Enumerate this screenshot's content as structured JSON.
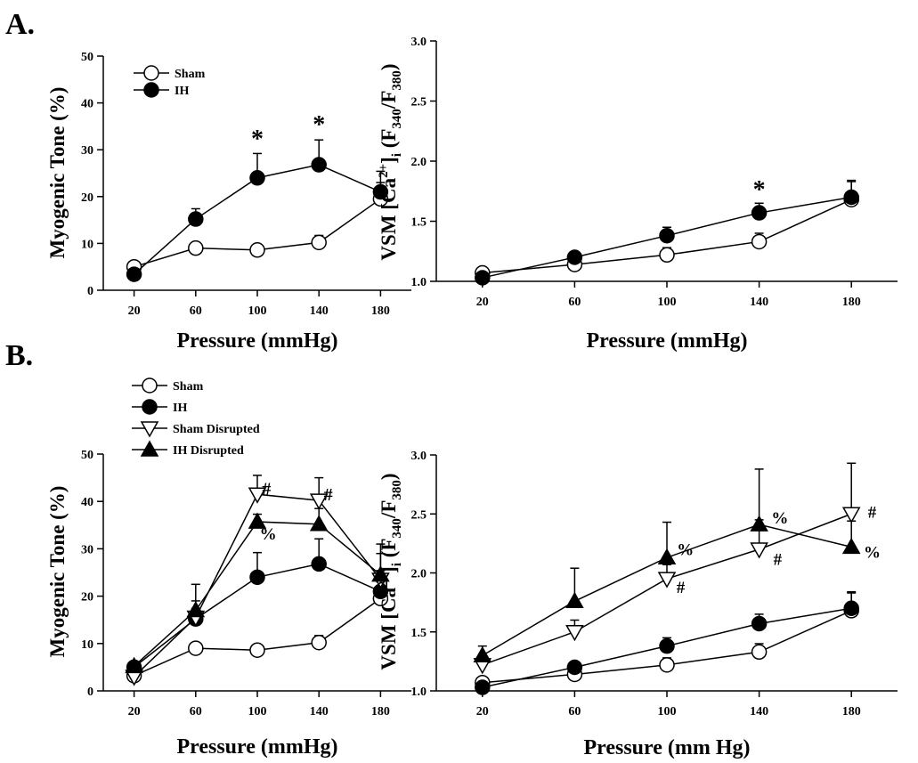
{
  "panels": [
    {
      "label": "A."
    },
    {
      "label": "B."
    }
  ],
  "chart_data": [
    {
      "type": "line",
      "panel": "A.",
      "xlabel": "Pressure (mmHg)",
      "ylabel": "Myogenic Tone (%)",
      "x": [
        20,
        60,
        100,
        140,
        180
      ],
      "xlim": [
        0,
        200
      ],
      "ylim": [
        0,
        50
      ],
      "yticks": [
        0,
        10,
        20,
        30,
        40,
        50
      ],
      "legend_position": "top-left",
      "series": [
        {
          "name": "Sham",
          "marker": "open-circle",
          "y": [
            5,
            9,
            8.6,
            10.2,
            19.5
          ],
          "err": [
            0.6,
            0.8,
            0.8,
            1.5,
            3.5
          ]
        },
        {
          "name": "IH",
          "marker": "filled-circle",
          "y": [
            3.4,
            15.2,
            24,
            26.8,
            21
          ],
          "err": [
            0.8,
            2.2,
            5.2,
            5.3,
            4.4
          ]
        }
      ],
      "annotations": [
        {
          "text": "*",
          "x": 100,
          "y": 32.5,
          "size": 28
        },
        {
          "text": "*",
          "x": 140,
          "y": 35.5,
          "size": 28
        }
      ]
    },
    {
      "type": "line",
      "panel": "A.",
      "xlabel": "Pressure (mmHg)",
      "ylabel": "VSM [Ca2+]i (F340/F380)",
      "ylabel_parts": {
        "pre": "VSM [Ca",
        "sup": "2+",
        "mid1": "]",
        "sub1": "i",
        "mid2": " (F",
        "sub2": "340",
        "mid3": "/F",
        "sub3": "380",
        "end": ")"
      },
      "x": [
        20,
        60,
        100,
        140,
        180
      ],
      "xlim": [
        0,
        200
      ],
      "ylim": [
        1.0,
        3.0
      ],
      "yticks": [
        "1.0",
        "1.5",
        "2.0",
        "2.5",
        "3.0"
      ],
      "series": [
        {
          "name": "Sham",
          "marker": "open-circle",
          "y": [
            1.07,
            1.14,
            1.22,
            1.33,
            1.68
          ],
          "err": [
            0.02,
            0.04,
            0.06,
            0.07,
            0.15
          ]
        },
        {
          "name": "IH",
          "marker": "filled-circle",
          "y": [
            1.03,
            1.2,
            1.38,
            1.57,
            1.7
          ],
          "err": [
            0.02,
            0.04,
            0.07,
            0.08,
            0.14
          ]
        }
      ],
      "annotations": [
        {
          "text": "*",
          "x": 140,
          "y": 1.77,
          "size": 28
        }
      ]
    },
    {
      "type": "line",
      "panel": "B.",
      "xlabel": "Pressure (mmHg)",
      "ylabel": "Myogenic Tone (%)",
      "x": [
        20,
        60,
        100,
        140,
        180
      ],
      "xlim": [
        0,
        200
      ],
      "ylim": [
        0,
        50
      ],
      "yticks": [
        0,
        10,
        20,
        30,
        40,
        50
      ],
      "legend_position": "top-left",
      "series": [
        {
          "name": "Sham",
          "marker": "open-circle",
          "y": [
            3.2,
            9,
            8.6,
            10.2,
            19.5
          ],
          "err": [
            0.6,
            0.8,
            0.8,
            1.5,
            3.5
          ]
        },
        {
          "name": "IH",
          "marker": "filled-circle",
          "y": [
            5,
            15.2,
            24,
            26.8,
            21
          ],
          "err": [
            0.8,
            2.2,
            5.2,
            5.3,
            4.4
          ]
        },
        {
          "name": "Sham Disrupted",
          "marker": "open-triangle-down",
          "y": [
            3,
            15.5,
            41.5,
            40.2,
            23.5
          ],
          "err": [
            0.6,
            3.5,
            4,
            4.8,
            5.5
          ]
        },
        {
          "name": "IH Disrupted",
          "marker": "filled-triangle-up",
          "y": [
            5.2,
            17,
            35.7,
            35.2,
            24.5
          ],
          "err": [
            0.7,
            5.5,
            1.6,
            3.3,
            6.5
          ]
        }
      ],
      "annotations": [
        {
          "text": "#",
          "x": 106,
          "y": 42.8,
          "size": 20
        },
        {
          "text": "#",
          "x": 146,
          "y": 41.5,
          "size": 20
        },
        {
          "text": "%",
          "x": 107,
          "y": 33.2,
          "size": 19
        }
      ]
    },
    {
      "type": "line",
      "panel": "B.",
      "xlabel": "Pressure (mm Hg)",
      "ylabel": "VSM [Ca2+]i (F340/F380)",
      "ylabel_parts": {
        "pre": "VSM [Ca",
        "sup": "2+",
        "mid1": "]",
        "sub1": "i",
        "mid2": " (F",
        "sub2": "340",
        "mid3": "/F",
        "sub3": "380",
        "end": ")"
      },
      "x": [
        20,
        60,
        100,
        140,
        180
      ],
      "xlim": [
        0,
        200
      ],
      "ylim": [
        1.0,
        3.0
      ],
      "yticks": [
        "1.0",
        "1.5",
        "2.0",
        "2.5",
        "3.0"
      ],
      "series": [
        {
          "name": "Sham",
          "marker": "open-circle",
          "y": [
            1.07,
            1.14,
            1.22,
            1.33,
            1.68
          ],
          "err": [
            0.02,
            0.04,
            0.06,
            0.07,
            0.15
          ]
        },
        {
          "name": "IH",
          "marker": "filled-circle",
          "y": [
            1.03,
            1.2,
            1.38,
            1.57,
            1.7
          ],
          "err": [
            0.02,
            0.04,
            0.07,
            0.08,
            0.14
          ]
        },
        {
          "name": "Sham Disrupted",
          "marker": "open-triangle-down",
          "y": [
            1.22,
            1.5,
            1.95,
            2.2,
            2.5
          ],
          "err": [
            0.06,
            0.1,
            0.12,
            0.25,
            0.43
          ]
        },
        {
          "name": "IH Disrupted",
          "marker": "filled-triangle-up",
          "y": [
            1.3,
            1.76,
            2.13,
            2.41,
            2.22
          ],
          "err": [
            0.08,
            0.28,
            0.3,
            0.47,
            0.22
          ]
        }
      ],
      "annotations": [
        {
          "text": "%",
          "x": 108,
          "y": 2.2,
          "size": 19
        },
        {
          "text": "#",
          "x": 106,
          "y": 1.88,
          "size": 19
        },
        {
          "text": "%",
          "x": 149,
          "y": 2.47,
          "size": 19
        },
        {
          "text": "#",
          "x": 148,
          "y": 2.12,
          "size": 19
        },
        {
          "text": "#",
          "x": 189,
          "y": 2.52,
          "size": 19
        },
        {
          "text": "%",
          "x": 189,
          "y": 2.18,
          "size": 19
        }
      ]
    }
  ]
}
